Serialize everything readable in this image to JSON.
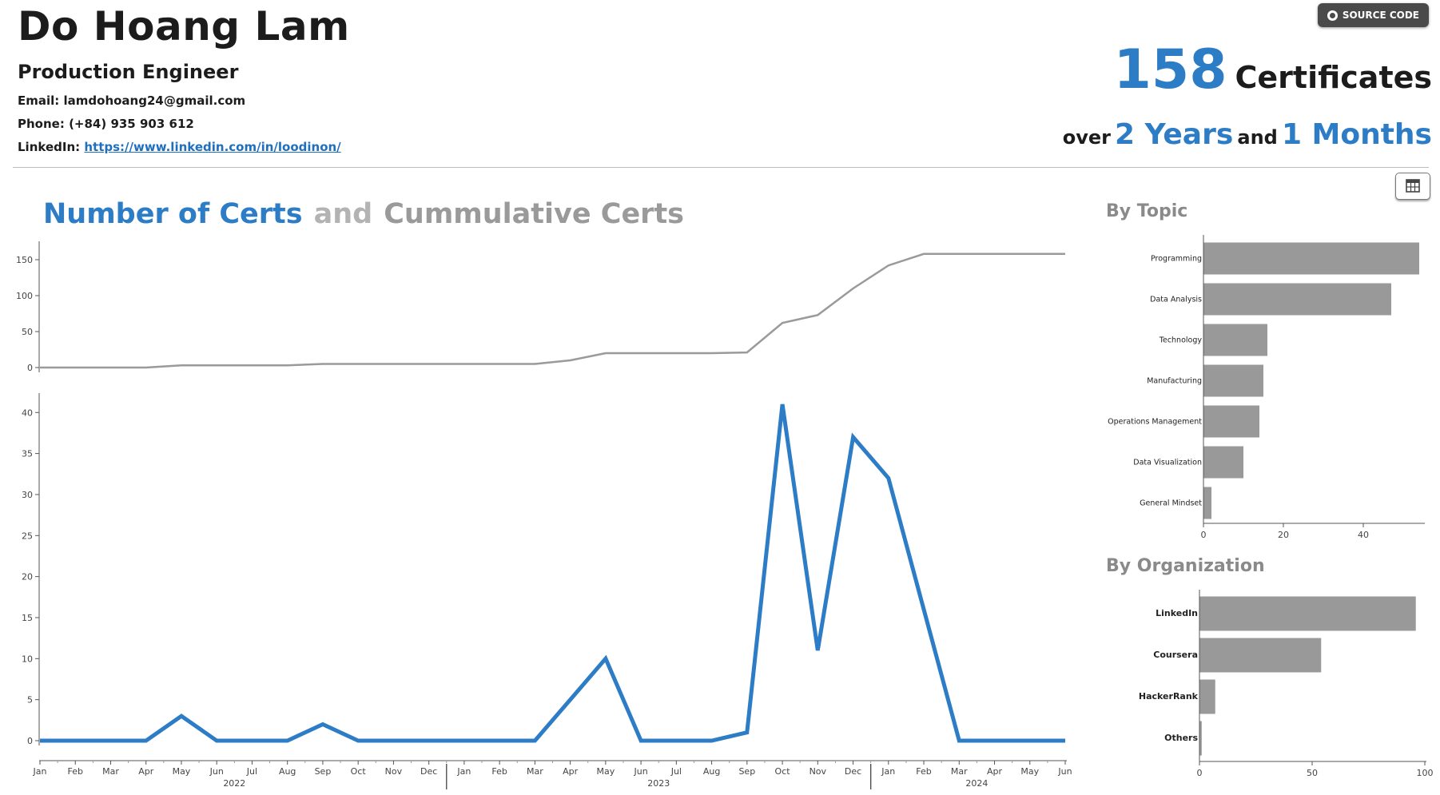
{
  "header": {
    "name": "Do Hoang Lam",
    "role": "Production Engineer",
    "email_label": "Email:",
    "email": "lamdohoang24@gmail.com",
    "phone_label": "Phone:",
    "phone": "(+84) 935 903 612",
    "linkedin_label": "LinkedIn:",
    "linkedin": "https://www.linkedin.com/in/loodinon/",
    "source_button": "SOURCE CODE"
  },
  "kpi": {
    "count": "158",
    "count_label": "Certificates",
    "over": "over",
    "years": "2 Years",
    "and": "and",
    "months": "1 Months"
  },
  "main_chart_title": {
    "part1": "Number of Certs",
    "and": "and",
    "part2": "Cummulative Certs"
  },
  "side": {
    "topic_title": "By Topic",
    "org_title": "By Organization"
  },
  "colors": {
    "accent": "#2d7cc6",
    "gray_line": "#9a9a9a",
    "bar": "#999999"
  },
  "icons": {
    "source": "github-icon",
    "table": "table-icon"
  },
  "chart_data": [
    {
      "type": "line",
      "name": "cumulative",
      "x": [
        "Jan",
        "Feb",
        "Mar",
        "Apr",
        "May",
        "Jun",
        "Jul",
        "Aug",
        "Sep",
        "Oct",
        "Nov",
        "Dec",
        "Jan",
        "Feb",
        "Mar",
        "Apr",
        "May",
        "Jun",
        "Jul",
        "Aug",
        "Sep",
        "Oct",
        "Nov",
        "Dec",
        "Jan",
        "Feb",
        "Mar",
        "Apr",
        "May",
        "Jun"
      ],
      "years": [
        {
          "label": "2022",
          "start": 0,
          "end": 11
        },
        {
          "label": "2023",
          "start": 12,
          "end": 23
        },
        {
          "label": "2024",
          "start": 24,
          "end": 29
        }
      ],
      "values": [
        0,
        0,
        0,
        0,
        3,
        3,
        3,
        3,
        5,
        5,
        5,
        5,
        5,
        5,
        5,
        10,
        20,
        20,
        20,
        20,
        21,
        62,
        73,
        110,
        142,
        158,
        158,
        158,
        158,
        158
      ],
      "ylim": [
        0,
        160
      ],
      "yticks": [
        0,
        50,
        100,
        150
      ],
      "color": "#9a9a9a"
    },
    {
      "type": "line",
      "name": "monthly",
      "x": [
        "Jan",
        "Feb",
        "Mar",
        "Apr",
        "May",
        "Jun",
        "Jul",
        "Aug",
        "Sep",
        "Oct",
        "Nov",
        "Dec",
        "Jan",
        "Feb",
        "Mar",
        "Apr",
        "May",
        "Jun",
        "Jul",
        "Aug",
        "Sep",
        "Oct",
        "Nov",
        "Dec",
        "Jan",
        "Feb",
        "Mar",
        "Apr",
        "May",
        "Jun"
      ],
      "years": [
        {
          "label": "2022",
          "start": 0,
          "end": 11
        },
        {
          "label": "2023",
          "start": 12,
          "end": 23
        },
        {
          "label": "2024",
          "start": 24,
          "end": 29
        }
      ],
      "values": [
        0,
        0,
        0,
        0,
        3,
        0,
        0,
        0,
        2,
        0,
        0,
        0,
        0,
        0,
        0,
        5,
        10,
        0,
        0,
        0,
        1,
        41,
        11,
        37,
        32,
        16,
        0,
        0,
        0,
        0
      ],
      "ylim": [
        0,
        41
      ],
      "yticks": [
        0,
        5,
        10,
        15,
        20,
        25,
        30,
        35,
        40
      ],
      "color": "#2d7cc6"
    },
    {
      "type": "bar",
      "orientation": "horizontal",
      "name": "by-topic",
      "categories": [
        "Programming",
        "Data Analysis",
        "Technology",
        "Manufacturing",
        "Operations Management",
        "Data Visualization",
        "General Mindset"
      ],
      "values": [
        54,
        47,
        16,
        15,
        14,
        10,
        2
      ],
      "xlim": [
        0,
        55
      ],
      "xticks": [
        0,
        20,
        40
      ]
    },
    {
      "type": "bar",
      "orientation": "horizontal",
      "name": "by-organization",
      "categories": [
        "LinkedIn",
        "Coursera",
        "HackerRank",
        "Others"
      ],
      "values": [
        96,
        54,
        7,
        1
      ],
      "xlim": [
        0,
        100
      ],
      "xticks": [
        0,
        50,
        100
      ]
    }
  ]
}
